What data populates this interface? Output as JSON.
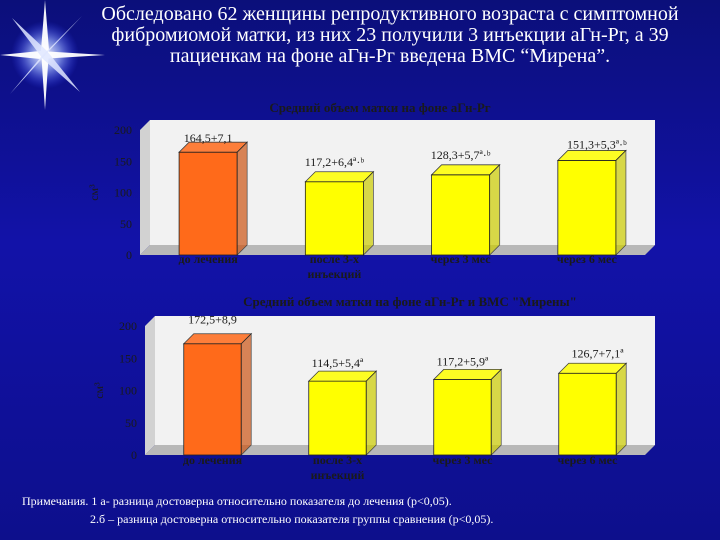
{
  "slide_title": "Обследовано 62 женщины репродуктивного возраста с симптомной фибромиомой матки, из них 23 получили 3 инъекции аГн-Рг, а 39 пациенкам на фоне аГн-Рг введена ВМС “Мирена”.",
  "colors": {
    "background": "#1212a8",
    "plot_area": "#f2f2f2",
    "bar_first": "#ff6a1a",
    "bar_other": "#ffff00",
    "text_dark": "#1a1a1a"
  },
  "chart_data": [
    {
      "type": "bar",
      "title": "Средний объем матки на фоне аГн-Рг",
      "ylabel": "см³",
      "ylim": [
        0,
        200
      ],
      "yticks": [
        "0",
        "50",
        "100",
        "150",
        "200"
      ],
      "categories": [
        "до лечения",
        "после 3-х инъекций",
        "через 3 мес",
        "через 6 мес"
      ],
      "values": [
        164.5,
        117.2,
        128.3,
        151.3
      ],
      "data_labels": [
        "164,5+7,1",
        "117,2+6,4ª·ᵇ",
        "128,3+5,7ª·ᵇ",
        "151,3+5,3ª·ᵇ"
      ]
    },
    {
      "type": "bar",
      "title": "Средний объем матки на фоне аГн-Рг и ВМС \"Мирены\"",
      "ylabel": "см³",
      "ylim": [
        0,
        200
      ],
      "yticks": [
        "0",
        "50",
        "100",
        "150",
        "200"
      ],
      "categories": [
        "до лечения",
        "после 3-х инъекций",
        "через 3 мес",
        "через 6 мес"
      ],
      "values": [
        172.5,
        114.5,
        117.2,
        126.7
      ],
      "data_labels": [
        "172,5+8,9",
        "114,5+5,4ª",
        "117,2+5,9ª",
        "126,7+7,1ª"
      ]
    }
  ],
  "footnote": {
    "line1": "Примечания. 1 а- разница достоверна относительно показателя до лечения (р<0,05).",
    "line2": "2.б – разница достоверна относительно показателя группы сравнения (р<0,05)."
  }
}
